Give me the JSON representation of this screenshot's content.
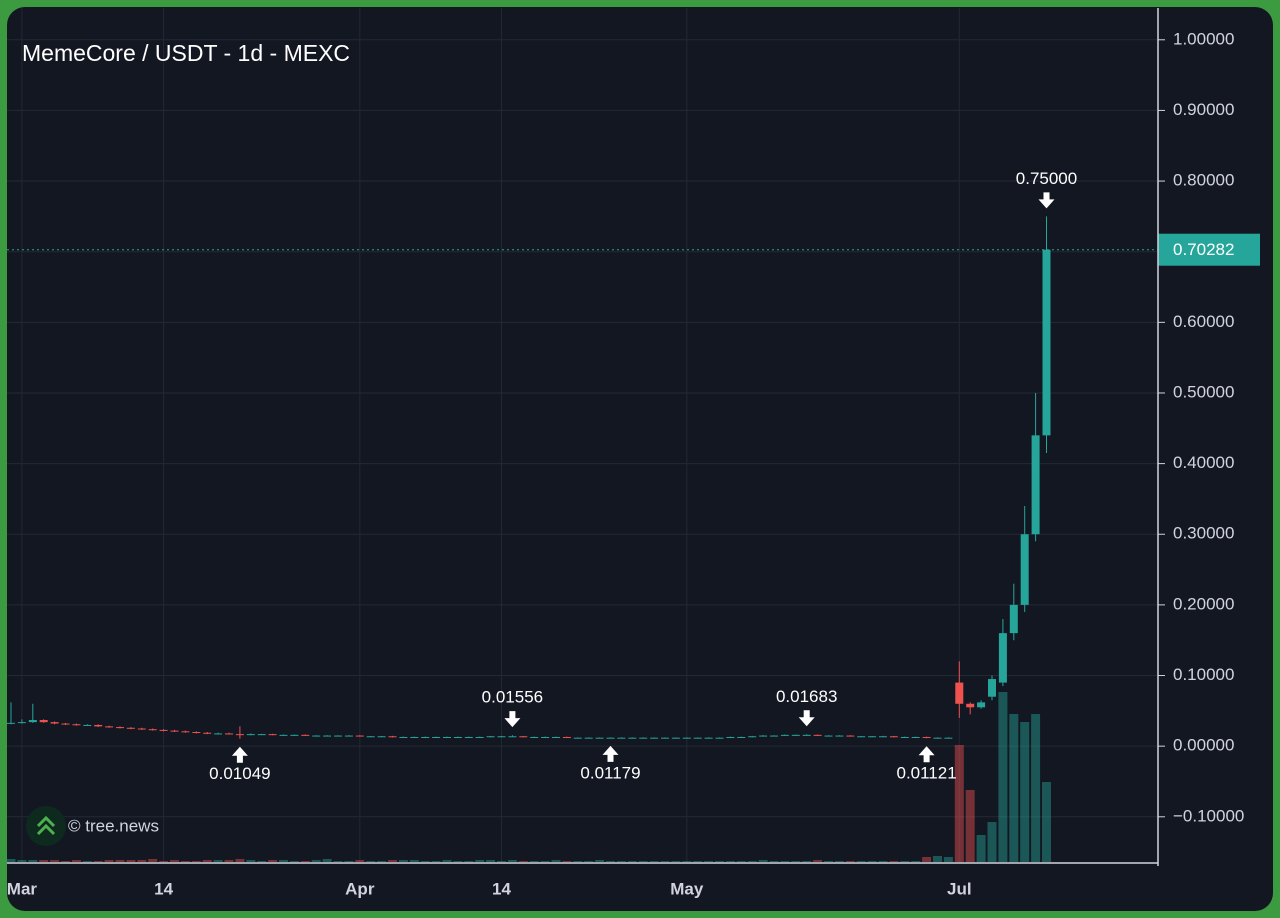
{
  "chart_data": {
    "type": "candlestick",
    "title": "MemeCore / USDT - 1d - MEXC",
    "watermark": "© tree.news",
    "categories": [
      null,
      "Mar",
      null,
      null,
      null,
      null,
      null,
      null,
      null,
      null,
      null,
      null,
      null,
      null,
      "14",
      null,
      null,
      null,
      null,
      null,
      null,
      null,
      null,
      null,
      null,
      null,
      null,
      null,
      null,
      null,
      null,
      null,
      "Apr",
      null,
      null,
      null,
      null,
      null,
      null,
      null,
      null,
      null,
      null,
      null,
      null,
      "14",
      null,
      null,
      null,
      null,
      null,
      null,
      null,
      null,
      null,
      null,
      null,
      null,
      null,
      null,
      null,
      null,
      "May",
      null,
      null,
      null,
      null,
      null,
      null,
      null,
      null,
      null,
      null,
      null,
      null,
      null,
      null,
      null,
      null,
      null,
      null,
      null,
      null,
      null,
      null,
      null,
      null,
      "Jul",
      null,
      null,
      null,
      null,
      null,
      null,
      null,
      null
    ],
    "candles": [
      [
        0.032,
        0.062,
        0.031,
        0.033
      ],
      [
        0.033,
        0.038,
        0.032,
        0.034
      ],
      [
        0.034,
        0.06,
        0.033,
        0.037
      ],
      [
        0.037,
        0.038,
        0.033,
        0.034
      ],
      [
        0.034,
        0.035,
        0.031,
        0.032
      ],
      [
        0.032,
        0.033,
        0.03,
        0.031
      ],
      [
        0.031,
        0.032,
        0.029,
        0.03
      ],
      [
        0.03,
        0.031,
        0.029,
        0.03
      ],
      [
        0.03,
        0.031,
        0.027,
        0.028
      ],
      [
        0.028,
        0.029,
        0.026,
        0.027
      ],
      [
        0.027,
        0.028,
        0.025,
        0.026
      ],
      [
        0.026,
        0.027,
        0.024,
        0.025
      ],
      [
        0.025,
        0.026,
        0.023,
        0.024
      ],
      [
        0.024,
        0.025,
        0.022,
        0.023
      ],
      [
        0.023,
        0.024,
        0.021,
        0.022
      ],
      [
        0.022,
        0.023,
        0.02,
        0.021
      ],
      [
        0.021,
        0.022,
        0.019,
        0.02
      ],
      [
        0.02,
        0.021,
        0.018,
        0.019
      ],
      [
        0.019,
        0.02,
        0.017,
        0.018
      ],
      [
        0.018,
        0.019,
        0.017,
        0.018
      ],
      [
        0.018,
        0.019,
        0.0165,
        0.017
      ],
      [
        0.017,
        0.028,
        0.01049,
        0.016
      ],
      [
        0.016,
        0.018,
        0.0155,
        0.017
      ],
      [
        0.017,
        0.0175,
        0.0165,
        0.017
      ],
      [
        0.017,
        0.0175,
        0.0155,
        0.016
      ],
      [
        0.016,
        0.0165,
        0.0155,
        0.016
      ],
      [
        0.016,
        0.0165,
        0.0155,
        0.016
      ],
      [
        0.016,
        0.0165,
        0.0145,
        0.015
      ],
      [
        0.015,
        0.0155,
        0.0145,
        0.015
      ],
      [
        0.015,
        0.0155,
        0.0145,
        0.015
      ],
      [
        0.015,
        0.0155,
        0.0145,
        0.015
      ],
      [
        0.015,
        0.0155,
        0.0145,
        0.015
      ],
      [
        0.015,
        0.0155,
        0.0135,
        0.014
      ],
      [
        0.014,
        0.0145,
        0.0135,
        0.014
      ],
      [
        0.014,
        0.0145,
        0.0135,
        0.014
      ],
      [
        0.014,
        0.0145,
        0.0125,
        0.013
      ],
      [
        0.013,
        0.0135,
        0.0125,
        0.013
      ],
      [
        0.013,
        0.0135,
        0.0125,
        0.013
      ],
      [
        0.013,
        0.0135,
        0.0125,
        0.013
      ],
      [
        0.013,
        0.0135,
        0.0125,
        0.013
      ],
      [
        0.013,
        0.0135,
        0.0125,
        0.013
      ],
      [
        0.013,
        0.0135,
        0.0125,
        0.013
      ],
      [
        0.013,
        0.0135,
        0.0125,
        0.013
      ],
      [
        0.013,
        0.0135,
        0.0125,
        0.013
      ],
      [
        0.013,
        0.0145,
        0.0125,
        0.014
      ],
      [
        0.014,
        0.0145,
        0.0135,
        0.014
      ],
      [
        0.014,
        0.01556,
        0.0135,
        0.014
      ],
      [
        0.014,
        0.0145,
        0.0125,
        0.013
      ],
      [
        0.013,
        0.0135,
        0.0125,
        0.013
      ],
      [
        0.013,
        0.0135,
        0.0125,
        0.013
      ],
      [
        0.013,
        0.0135,
        0.0125,
        0.013
      ],
      [
        0.013,
        0.0135,
        0.0118,
        0.012
      ],
      [
        0.012,
        0.0125,
        0.0118,
        0.012
      ],
      [
        0.012,
        0.0125,
        0.0118,
        0.012
      ],
      [
        0.012,
        0.0125,
        0.0118,
        0.012
      ],
      [
        0.012,
        0.0125,
        0.01179,
        0.012
      ],
      [
        0.012,
        0.0125,
        0.0118,
        0.012
      ],
      [
        0.012,
        0.0125,
        0.0118,
        0.012
      ],
      [
        0.012,
        0.0125,
        0.0118,
        0.012
      ],
      [
        0.012,
        0.0125,
        0.0118,
        0.012
      ],
      [
        0.012,
        0.0125,
        0.0118,
        0.012
      ],
      [
        0.012,
        0.0125,
        0.0118,
        0.012
      ],
      [
        0.012,
        0.0125,
        0.0118,
        0.012
      ],
      [
        0.012,
        0.0125,
        0.0118,
        0.012
      ],
      [
        0.012,
        0.0125,
        0.0118,
        0.012
      ],
      [
        0.012,
        0.0125,
        0.0118,
        0.012
      ],
      [
        0.012,
        0.0135,
        0.0118,
        0.013
      ],
      [
        0.013,
        0.0135,
        0.0125,
        0.013
      ],
      [
        0.013,
        0.0145,
        0.0125,
        0.014
      ],
      [
        0.014,
        0.0155,
        0.0135,
        0.015
      ],
      [
        0.015,
        0.0155,
        0.0145,
        0.015
      ],
      [
        0.015,
        0.0165,
        0.0145,
        0.016
      ],
      [
        0.016,
        0.0165,
        0.0155,
        0.016
      ],
      [
        0.016,
        0.01683,
        0.0155,
        0.016
      ],
      [
        0.016,
        0.0165,
        0.0145,
        0.015
      ],
      [
        0.015,
        0.0155,
        0.0145,
        0.015
      ],
      [
        0.015,
        0.0155,
        0.0145,
        0.015
      ],
      [
        0.015,
        0.0155,
        0.0135,
        0.014
      ],
      [
        0.014,
        0.0145,
        0.0135,
        0.014
      ],
      [
        0.014,
        0.0145,
        0.0135,
        0.014
      ],
      [
        0.014,
        0.0145,
        0.0135,
        0.014
      ],
      [
        0.014,
        0.0145,
        0.0125,
        0.013
      ],
      [
        0.013,
        0.0135,
        0.0125,
        0.013
      ],
      [
        0.013,
        0.0135,
        0.0125,
        0.013
      ],
      [
        0.013,
        0.0135,
        0.01121,
        0.012
      ],
      [
        0.012,
        0.0125,
        0.0115,
        0.012
      ],
      [
        0.012,
        0.0125,
        0.0115,
        0.012
      ],
      [
        0.09,
        0.12,
        0.04,
        0.06
      ],
      [
        0.06,
        0.062,
        0.045,
        0.055
      ],
      [
        0.055,
        0.065,
        0.053,
        0.062
      ],
      [
        0.07,
        0.1,
        0.065,
        0.095
      ],
      [
        0.09,
        0.18,
        0.085,
        0.16
      ],
      [
        0.16,
        0.23,
        0.15,
        0.2
      ],
      [
        0.2,
        0.34,
        0.19,
        0.3
      ],
      [
        0.3,
        0.5,
        0.29,
        0.44
      ],
      [
        0.44,
        0.75,
        0.415,
        0.70282
      ]
    ],
    "volume": [
      3,
      2,
      2,
      2,
      2,
      1,
      2,
      1,
      1,
      2,
      2,
      2,
      2,
      3,
      1,
      2,
      1,
      1,
      2,
      2,
      2,
      3,
      2,
      1,
      2,
      2,
      1,
      1,
      2,
      3,
      1,
      1,
      2,
      1,
      1,
      2,
      2,
      2,
      1,
      1,
      2,
      1,
      1,
      2,
      2,
      1,
      2,
      1,
      1,
      1,
      2,
      1,
      1,
      1,
      2,
      1,
      1,
      1,
      1,
      1,
      1,
      1,
      1,
      1,
      1,
      1,
      1,
      1,
      1,
      2,
      1,
      1,
      1,
      1,
      2,
      1,
      1,
      1,
      1,
      1,
      1,
      1,
      1,
      1,
      5,
      6,
      5,
      117,
      72,
      27,
      40,
      170,
      148,
      140,
      148,
      80
    ],
    "up_color": "#26a69a",
    "down_color": "#ef5350",
    "ylim": [
      -0.164,
      1.045
    ],
    "yticks": [
      {
        "value": 1.0,
        "label": "1.00000"
      },
      {
        "value": 0.9,
        "label": "0.90000"
      },
      {
        "value": 0.8,
        "label": "0.80000"
      },
      {
        "value": 0.7,
        "label": "0.70000"
      },
      {
        "value": 0.6,
        "label": "0.60000"
      },
      {
        "value": 0.5,
        "label": "0.50000"
      },
      {
        "value": 0.4,
        "label": "0.40000"
      },
      {
        "value": 0.3,
        "label": "0.30000"
      },
      {
        "value": 0.2,
        "label": "0.20000"
      },
      {
        "value": 0.1,
        "label": "0.10000"
      },
      {
        "value": 0,
        "label": "0.00000"
      },
      {
        "value": -0.1,
        "label": "−0.10000"
      }
    ],
    "last_price": {
      "value": 0.70282,
      "label": "0.70282"
    },
    "annotations": [
      {
        "kind": "high",
        "value": 0.75,
        "label": "0.75000"
      },
      {
        "kind": "high",
        "value": 0.01556,
        "label": "0.01556"
      },
      {
        "kind": "high",
        "value": 0.01683,
        "label": "0.01683"
      },
      {
        "kind": "low",
        "value": 0.01049,
        "label": "0.01049"
      },
      {
        "kind": "low",
        "value": 0.01179,
        "label": "0.01179"
      },
      {
        "kind": "low",
        "value": 0.01121,
        "label": "0.01121"
      }
    ],
    "grid": true
  }
}
